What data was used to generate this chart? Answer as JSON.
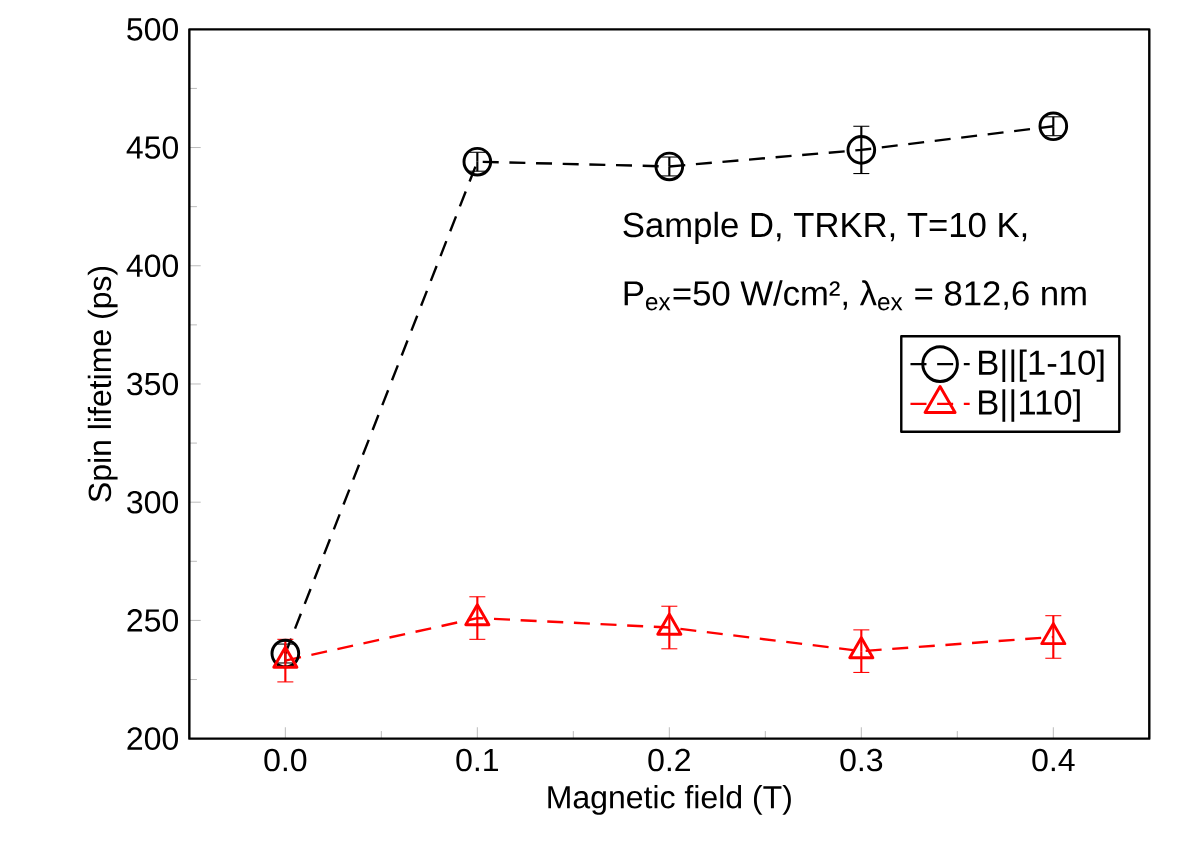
{
  "chart_data": {
    "type": "line",
    "xlabel": "Magnetic field (T)",
    "ylabel": "Spin lifetime (ps)",
    "x": [
      0.0,
      0.1,
      0.2,
      0.3,
      0.4
    ],
    "series": [
      {
        "name": "B||[1-10]",
        "color": "#000000",
        "marker": "circle",
        "values": [
          236,
          444,
          442,
          449,
          459
        ],
        "errors": [
          4,
          4,
          4,
          10,
          4
        ]
      },
      {
        "name": "B||110]",
        "color": "#ff0000",
        "marker": "triangle",
        "values": [
          233,
          251,
          247,
          237,
          243
        ],
        "errors": [
          9,
          9,
          9,
          9,
          9
        ]
      }
    ],
    "xlim": [
      -0.05,
      0.45
    ],
    "ylim": [
      200,
      500
    ],
    "xticks": [
      {
        "value": 0,
        "label": "0.0"
      },
      {
        "value": 0.1,
        "label": "0.1"
      },
      {
        "value": 0.2,
        "label": "0.2"
      },
      {
        "value": 0.3,
        "label": "0.3"
      },
      {
        "value": 0.4,
        "label": "0.4"
      }
    ],
    "yticks": [
      200,
      250,
      300,
      350,
      400,
      450,
      500
    ],
    "annotations": [
      "Sample D, TRKR, T=10 K,",
      "P$_{ex}$=50 W/cm², λ$_{ex}$ = 812,6 nm"
    ],
    "legend": "right",
    "line_style": "dashed",
    "grid": false
  }
}
